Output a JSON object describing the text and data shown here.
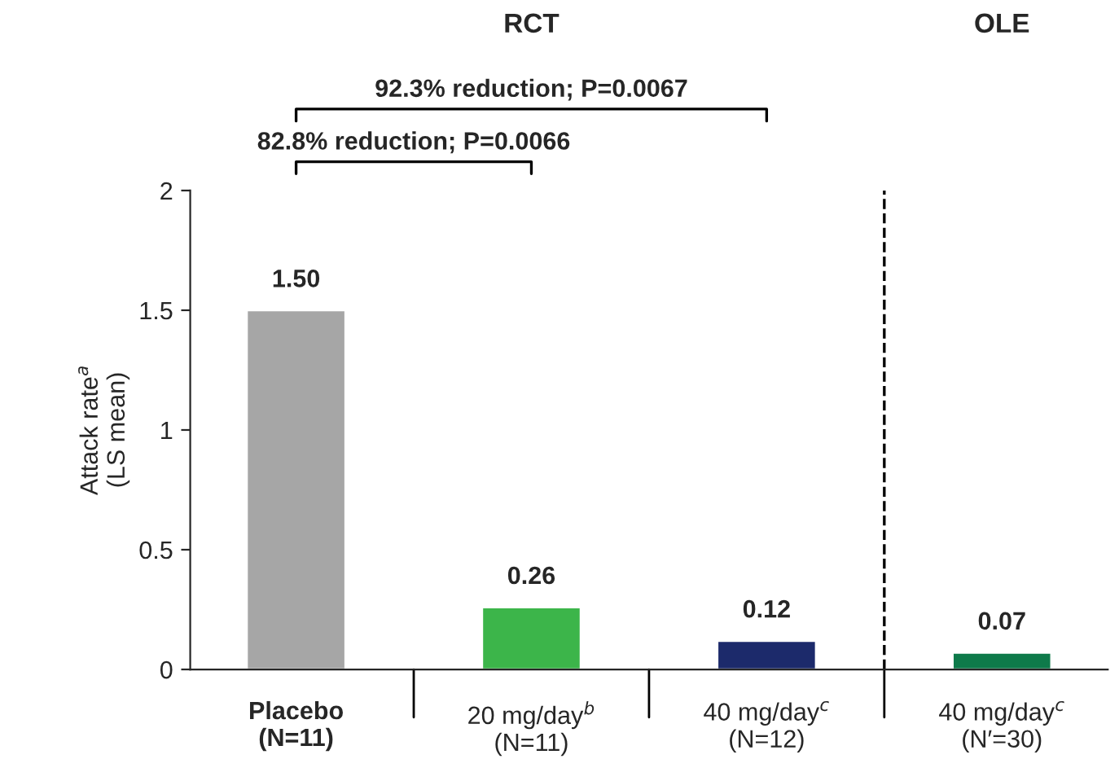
{
  "chart_data": {
    "type": "bar",
    "categories": [
      "Placebo\n(N=11)",
      "20 mg/day$^{b}$\n(N=11)",
      "40 mg/day$^{c}$\n(N=12)",
      "40 mg/day$^{c}$\n(N′=30)"
    ],
    "values": [
      1.5,
      0.26,
      0.12,
      0.07
    ],
    "value_labels": [
      "1.50",
      "0.26",
      "0.12",
      "0.07"
    ],
    "colors": [
      "#a6a6a6",
      "#3cb54a",
      "#1c2a6b",
      "#0e7a4a"
    ],
    "ylabel": "Attack rate$^{a}$\n(LS mean)",
    "ylim": [
      0,
      2
    ],
    "yticks": [
      0,
      0.5,
      1,
      1.5,
      2
    ],
    "annotations": [
      "RCT",
      "OLE",
      "92.3% reduction; P=0.0067",
      "82.8% reduction; P=0.0066"
    ],
    "grid": false,
    "legend": false
  }
}
